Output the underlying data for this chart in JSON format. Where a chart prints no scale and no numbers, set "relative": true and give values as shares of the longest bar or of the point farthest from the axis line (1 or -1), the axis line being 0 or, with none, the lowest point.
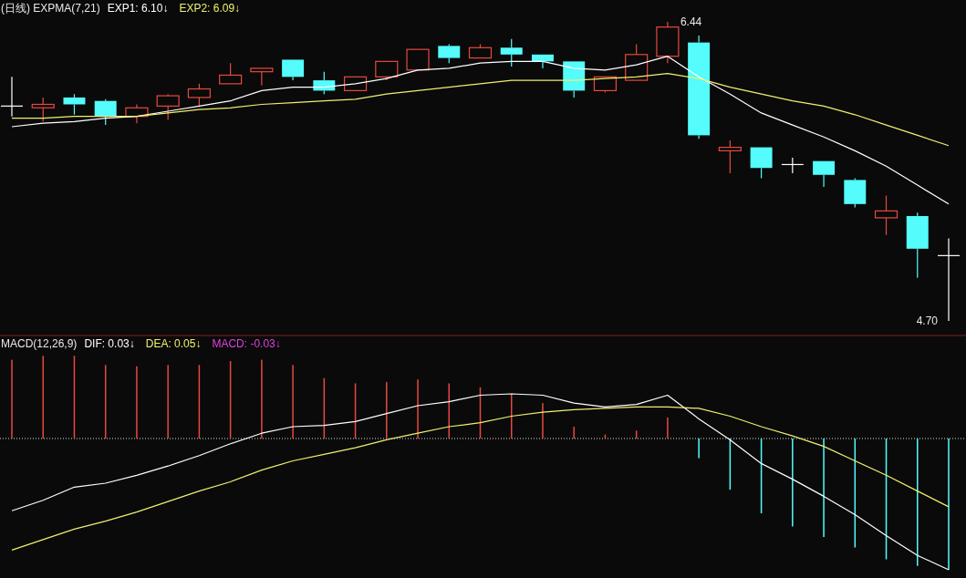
{
  "chart_data": [
    {
      "type": "candlestick",
      "title": "(日线) EXPMA(7,21)",
      "legend": "top left",
      "categories": [
        null,
        null,
        null,
        null,
        null,
        null,
        null,
        null,
        null,
        null,
        null,
        null,
        null,
        null,
        null,
        null,
        null,
        null,
        null,
        null,
        null,
        null,
        null,
        null,
        null,
        null,
        null,
        null,
        null,
        null,
        null
      ],
      "ohlc": [
        [
          5.95,
          6.12,
          5.89,
          5.95
        ],
        [
          5.94,
          6.0,
          5.86,
          5.96
        ],
        [
          6.0,
          6.02,
          5.9,
          5.96
        ],
        [
          5.98,
          5.99,
          5.84,
          5.89
        ],
        [
          5.89,
          5.96,
          5.85,
          5.94
        ],
        [
          5.95,
          6.02,
          5.87,
          6.01
        ],
        [
          6.0,
          6.08,
          5.95,
          6.05
        ],
        [
          6.08,
          6.2,
          6.08,
          6.13
        ],
        [
          6.15,
          6.17,
          6.07,
          6.17
        ],
        [
          6.22,
          6.22,
          6.1,
          6.12
        ],
        [
          6.1,
          6.15,
          6.02,
          6.04
        ],
        [
          6.04,
          6.12,
          6.04,
          6.12
        ],
        [
          6.12,
          6.21,
          6.1,
          6.21
        ],
        [
          6.16,
          6.28,
          6.16,
          6.28
        ],
        [
          6.3,
          6.31,
          6.2,
          6.23
        ],
        [
          6.23,
          6.31,
          6.23,
          6.29
        ],
        [
          6.29,
          6.34,
          6.18,
          6.25
        ],
        [
          6.25,
          6.25,
          6.17,
          6.21
        ],
        [
          6.21,
          6.21,
          6.0,
          6.04
        ],
        [
          6.04,
          6.12,
          6.03,
          6.12
        ],
        [
          6.1,
          6.31,
          6.1,
          6.25
        ],
        [
          6.24,
          6.44,
          6.2,
          6.41
        ],
        [
          6.32,
          6.36,
          5.76,
          5.78
        ],
        [
          5.69,
          5.75,
          5.56,
          5.71
        ],
        [
          5.71,
          5.71,
          5.53,
          5.59
        ],
        [
          5.61,
          5.65,
          5.56,
          5.61
        ],
        [
          5.63,
          5.63,
          5.48,
          5.55
        ],
        [
          5.52,
          5.53,
          5.36,
          5.38
        ],
        [
          5.3,
          5.43,
          5.2,
          5.34
        ],
        [
          5.31,
          5.33,
          4.95,
          5.12
        ],
        [
          5.08,
          5.18,
          4.7,
          5.08
        ]
      ],
      "colors": [
        "#ffffff",
        "#e8493f",
        "#54fcfc",
        "#54fcfc",
        "#e8493f",
        "#e8493f",
        "#e8493f",
        "#e8493f",
        "#e8493f",
        "#54fcfc",
        "#54fcfc",
        "#e8493f",
        "#e8493f",
        "#e8493f",
        "#54fcfc",
        "#e8493f",
        "#54fcfc",
        "#54fcfc",
        "#54fcfc",
        "#e8493f",
        "#e8493f",
        "#e8493f",
        "#54fcfc",
        "#e8493f",
        "#54fcfc",
        "#ffffff",
        "#54fcfc",
        "#54fcfc",
        "#e8493f",
        "#54fcfc",
        "#ffffff"
      ],
      "series": [
        {
          "name": "EXP1: 6.10↓",
          "type": "line",
          "color": "#ffffff",
          "values": [
            5.83,
            5.85,
            5.86,
            5.88,
            5.89,
            5.92,
            5.95,
            5.98,
            6.04,
            6.06,
            6.06,
            6.08,
            6.11,
            6.16,
            6.17,
            6.2,
            6.21,
            6.21,
            6.17,
            6.16,
            6.19,
            6.24,
            6.12,
            6.02,
            5.91,
            5.84,
            5.77,
            5.69,
            5.6,
            5.49,
            5.38
          ]
        },
        {
          "name": "EXP2: 6.09↓",
          "type": "line",
          "color": "#f0f070",
          "values": [
            5.88,
            5.88,
            5.89,
            5.89,
            5.89,
            5.91,
            5.93,
            5.94,
            5.96,
            5.97,
            5.98,
            5.99,
            6.02,
            6.04,
            6.06,
            6.08,
            6.1,
            6.1,
            6.1,
            6.11,
            6.12,
            6.14,
            6.11,
            6.06,
            6.02,
            5.98,
            5.95,
            5.9,
            5.84,
            5.78,
            5.72
          ]
        }
      ],
      "annotations": [
        "6.44",
        "4.70"
      ]
    },
    {
      "type": "bar",
      "title": "MACD(12,26,9)",
      "relative": true,
      "legend": "top left",
      "ref_lines": [
        {
          "axis": "y",
          "value": 0,
          "color": "#dddddd",
          "line_style": "dotted"
        }
      ],
      "categories": [
        null,
        null,
        null,
        null,
        null,
        null,
        null,
        null,
        null,
        null,
        null,
        null,
        null,
        null,
        null,
        null,
        null,
        null,
        null,
        null,
        null,
        null,
        null,
        null,
        null,
        null,
        null,
        null,
        null,
        null,
        null
      ],
      "series": [
        {
          "name": "DIF: 0.03↓",
          "type": "line",
          "color": "#ffffff",
          "values": [
            -0.55,
            -0.47,
            -0.37,
            -0.34,
            -0.28,
            -0.21,
            -0.13,
            -0.04,
            0.04,
            0.09,
            0.1,
            0.13,
            0.19,
            0.25,
            0.28,
            0.33,
            0.34,
            0.33,
            0.27,
            0.24,
            0.26,
            0.33,
            0.15,
            -0.01,
            -0.19,
            -0.31,
            -0.44,
            -0.58,
            -0.74,
            -0.89,
            -1
          ]
        },
        {
          "name": "DEA: 0.05↓",
          "type": "line",
          "color": "#f0f070",
          "values": [
            -0.85,
            -0.77,
            -0.69,
            -0.63,
            -0.56,
            -0.48,
            -0.4,
            -0.33,
            -0.24,
            -0.17,
            -0.12,
            -0.07,
            -0.01,
            0.04,
            0.09,
            0.12,
            0.17,
            0.2,
            0.22,
            0.23,
            0.24,
            0.24,
            0.23,
            0.17,
            0.09,
            0.02,
            -0.06,
            -0.17,
            -0.28,
            -0.4,
            -0.52
          ]
        },
        {
          "name": "MACD: -0.03↓",
          "type": "bar",
          "colors": [
            "#e8493f",
            "#e8493f",
            "#e8493f",
            "#e8493f",
            "#e8493f",
            "#e8493f",
            "#e8493f",
            "#e8493f",
            "#e8493f",
            "#e8493f",
            "#e8493f",
            "#e8493f",
            "#e8493f",
            "#e8493f",
            "#e8493f",
            "#e8493f",
            "#e8493f",
            "#e8493f",
            "#e8493f",
            "#e8493f",
            "#e8493f",
            "#e8493f",
            "#54fcfc",
            "#54fcfc",
            "#54fcfc",
            "#54fcfc",
            "#54fcfc",
            "#54fcfc",
            "#54fcfc",
            "#54fcfc",
            "#54fcfc"
          ],
          "values": [
            0.6,
            0.63,
            0.63,
            0.56,
            0.55,
            0.56,
            0.56,
            0.59,
            0.6,
            0.56,
            0.46,
            0.42,
            0.43,
            0.45,
            0.42,
            0.39,
            0.34,
            0.27,
            0.09,
            0.03,
            0.06,
            0.16,
            -0.15,
            -0.39,
            -0.57,
            -0.67,
            -0.75,
            -0.83,
            -0.92,
            -0.97,
            -1
          ]
        }
      ]
    }
  ]
}
